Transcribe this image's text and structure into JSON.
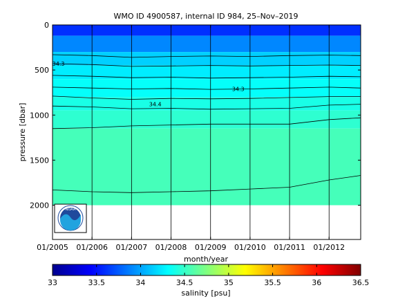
{
  "chart_data": {
    "type": "heatmap",
    "title": "WMO ID 4900587, internal ID 984, 25–Nov–2019",
    "xlabel": "month/year",
    "ylabel": "pressure [dbar]",
    "x_tick_labels": [
      "01/2005",
      "01/2006",
      "01/2007",
      "01/2008",
      "01/2009",
      "01/2010",
      "01/2011",
      "01/2012"
    ],
    "x_ticks_decimal_year": [
      2005.0,
      2006.0,
      2007.0,
      2008.0,
      2009.0,
      2010.0,
      2011.0,
      2012.0
    ],
    "xlim": [
      2005.0,
      2012.8
    ],
    "y_ticks": [
      0,
      500,
      1000,
      1500,
      2000
    ],
    "ylim": [
      0,
      2380
    ],
    "y_inverted": true,
    "data_max_pressure": 2000,
    "colorbar": {
      "label": "salinity [psu]",
      "min": 33,
      "max": 36.5,
      "ticks": [
        33,
        33.5,
        34,
        34.5,
        35,
        35.5,
        36,
        36.5
      ],
      "tick_labels": [
        "33",
        "33.5",
        "34",
        "34.5",
        "35",
        "35.5",
        "36",
        "36.5"
      ],
      "colormap": "jet"
    },
    "contour_labels": [
      {
        "text": "34.3",
        "x": 2005.15,
        "pressure": 430
      },
      {
        "text": "34.3",
        "x": 2009.7,
        "pressure": 710
      },
      {
        "text": "34.4",
        "x": 2007.6,
        "pressure": 880
      }
    ],
    "isohalines": [
      {
        "salinity": 34.15,
        "pressure": [
          330,
          340,
          360,
          350,
          345,
          350,
          340,
          335,
          340
        ]
      },
      {
        "salinity": 34.25,
        "pressure": [
          430,
          440,
          460,
          455,
          450,
          455,
          450,
          445,
          450
        ]
      },
      {
        "salinity": 34.3,
        "pressure": [
          560,
          570,
          585,
          580,
          590,
          585,
          580,
          570,
          575
        ]
      },
      {
        "salinity": 34.35,
        "pressure": [
          690,
          700,
          710,
          705,
          715,
          710,
          700,
          690,
          700
        ]
      },
      {
        "salinity": 34.4,
        "pressure": [
          790,
          810,
          825,
          815,
          820,
          815,
          805,
          795,
          795
        ]
      },
      {
        "salinity": 34.45,
        "pressure": [
          900,
          910,
          930,
          925,
          935,
          930,
          925,
          890,
          880
        ]
      },
      {
        "salinity": 34.5,
        "pressure": [
          1150,
          1140,
          1120,
          1110,
          1100,
          1100,
          1100,
          1050,
          1030
        ]
      },
      {
        "salinity": 34.6,
        "pressure": [
          1830,
          1850,
          1860,
          1850,
          1840,
          1820,
          1800,
          1720,
          1670
        ]
      }
    ],
    "isohaline_x": [
      2005.0,
      2006.0,
      2007.0,
      2008.0,
      2009.0,
      2010.0,
      2011.0,
      2012.0,
      2012.8
    ],
    "layers": [
      {
        "top": 0,
        "bottom": 120,
        "salinity": 33.6
      },
      {
        "top": 120,
        "bottom": 300,
        "salinity": 33.9
      },
      {
        "top": 300,
        "bottom": 450,
        "salinity": 34.15
      },
      {
        "top": 450,
        "bottom": 600,
        "salinity": 34.25
      },
      {
        "top": 600,
        "bottom": 800,
        "salinity": 34.33
      },
      {
        "top": 800,
        "bottom": 950,
        "salinity": 34.4
      },
      {
        "top": 950,
        "bottom": 1150,
        "salinity": 34.47
      },
      {
        "top": 1150,
        "bottom": 2000,
        "salinity": 34.55
      }
    ],
    "grid": true,
    "grid_orientation": "vertical"
  },
  "logo": {
    "text": "NOAA",
    "colors": {
      "sky": "#1f4a9c",
      "wave": "#21a3df",
      "ring": "#ffffff"
    }
  }
}
